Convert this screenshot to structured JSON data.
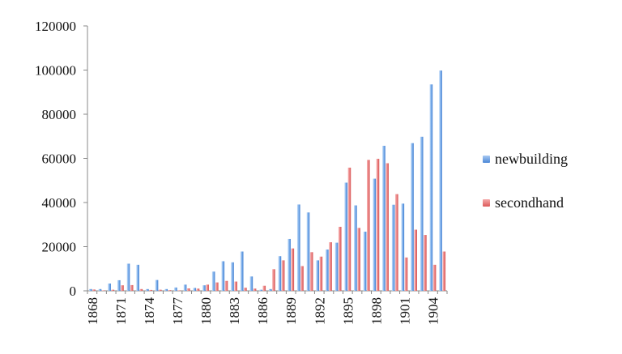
{
  "chart_data": {
    "type": "bar",
    "title": "",
    "xlabel": "",
    "ylabel": "",
    "ylim": [
      0,
      120000
    ],
    "yticks": [
      "0",
      "20000",
      "40000",
      "60000",
      "80000",
      "100000",
      "120000"
    ],
    "categories": [
      1868,
      1869,
      1870,
      1871,
      1872,
      1873,
      1874,
      1875,
      1876,
      1877,
      1878,
      1879,
      1880,
      1881,
      1882,
      1883,
      1884,
      1885,
      1886,
      1887,
      1888,
      1889,
      1890,
      1891,
      1892,
      1893,
      1894,
      1895,
      1896,
      1897,
      1898,
      1899,
      1900,
      1901,
      1902,
      1903,
      1904,
      1905
    ],
    "xtick_labels": [
      "1868",
      "1871",
      "1874",
      "1877",
      "1880",
      "1883",
      "1886",
      "1889",
      "1892",
      "1895",
      "1898",
      "1901",
      "1904"
    ],
    "grid": false,
    "legend": "right",
    "series": [
      {
        "name": "newbuilding",
        "color": "#6fa6e6",
        "values": [
          800,
          800,
          3300,
          4800,
          12300,
          11800,
          800,
          4900,
          800,
          1500,
          2800,
          1300,
          2500,
          8700,
          13400,
          12900,
          17800,
          6500,
          500,
          800,
          15700,
          23500,
          39100,
          35500,
          13800,
          18700,
          21800,
          49000,
          38700,
          26800,
          50800,
          65700,
          39000,
          39500,
          66900,
          69800,
          93500,
          99800
        ]
      },
      {
        "name": "secondhand",
        "color": "#e87a7a",
        "values": [
          600,
          200,
          500,
          2500,
          2600,
          800,
          400,
          500,
          300,
          200,
          1100,
          1000,
          2800,
          3800,
          4500,
          4200,
          1400,
          1000,
          2300,
          9800,
          13800,
          19200,
          11200,
          17500,
          15500,
          22000,
          29000,
          55800,
          28500,
          59300,
          59800,
          57800,
          43800,
          15100,
          27700,
          25300,
          11800,
          17800
        ]
      }
    ]
  }
}
